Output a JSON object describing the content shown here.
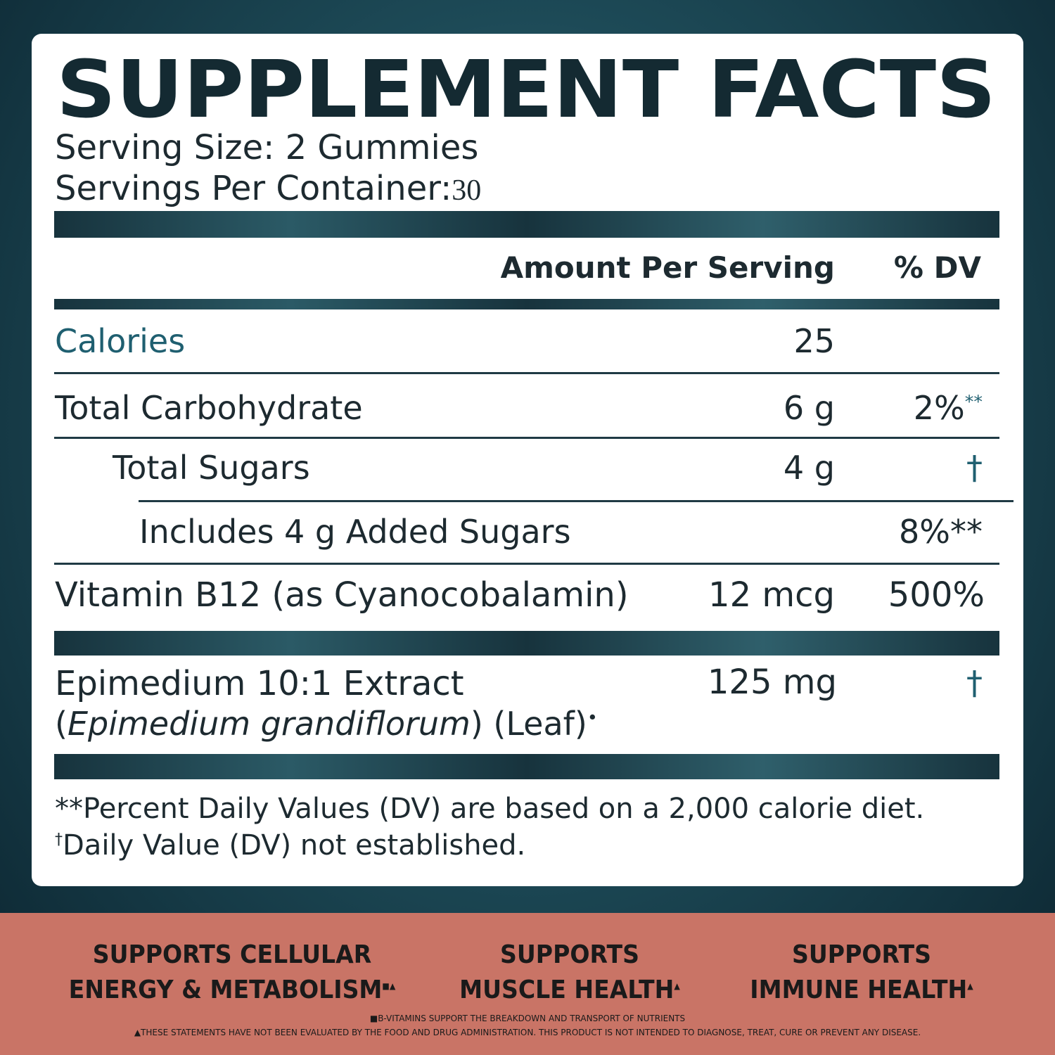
{
  "header": {
    "title": "SUPPLEMENT FACTS",
    "serving_size": "Serving Size: 2 Gummies",
    "servings_label": "Servings Per Container:",
    "servings_value": "30"
  },
  "columns": {
    "amount": "Amount Per Serving",
    "dv": "% DV"
  },
  "rows": [
    {
      "name": "Calories",
      "amount": "25",
      "dv": ""
    },
    {
      "name": "Total Carbohydrate",
      "amount": "6 g",
      "dv": "2%",
      "dv_note": "**"
    },
    {
      "name": "Total Sugars",
      "amount": "4 g",
      "dv": "†"
    },
    {
      "name": "Includes 4 g Added Sugars",
      "amount": "",
      "dv": "8%**"
    },
    {
      "name": "Vitamin B12 (as Cyanocobalamin)",
      "amount": "12 mcg",
      "dv": "500%"
    },
    {
      "name": "Epimedium 10:1 Extract",
      "latin_open": "(",
      "latin": "Epimedium grandiflorum",
      "latin_close": ") (Leaf)",
      "latin_note": "•",
      "amount": "125 mg",
      "dv": "†"
    }
  ],
  "footnotes": [
    {
      "mark": "**",
      "text": "Percent Daily Values (DV) are based on a 2,000 calorie diet."
    },
    {
      "mark": "†",
      "text": "Daily Value (DV) not established."
    }
  ],
  "benefits": [
    {
      "line1": "SUPPORTS CELLULAR",
      "line2": "ENERGY & METABOLISM",
      "mark": "■▲"
    },
    {
      "line1": "SUPPORTS",
      "line2": "MUSCLE HEALTH",
      "mark": "▲"
    },
    {
      "line1": "SUPPORTS",
      "line2": "IMMUNE HEALTH",
      "mark": "▲"
    }
  ],
  "disclaimers": [
    "■B-VITAMINS SUPPORT THE BREAKDOWN AND TRANSPORT OF NUTRIENTS",
    "▲THESE STATEMENTS HAVE NOT BEEN EVALUATED BY THE FOOD AND DRUG ADMINISTRATION. THIS PRODUCT IS NOT INTENDED TO DIAGNOSE, TREAT, CURE OR PREVENT ANY DISEASE."
  ]
}
